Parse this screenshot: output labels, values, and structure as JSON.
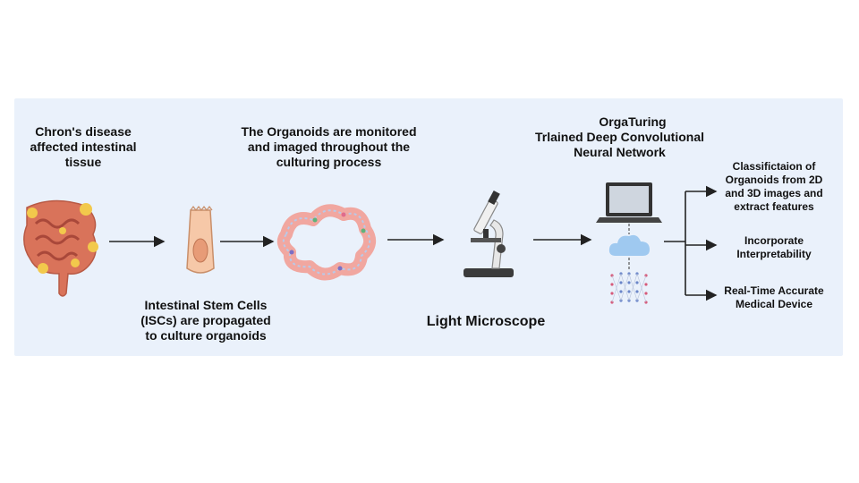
{
  "labels": {
    "tissue": "Chron's disease\naffected intestinal\ntissue",
    "stem_cells": "Intestinal Stem Cells\n(ISCs) are propagated\nto culture organoids",
    "organoids": "The Organoids are monitored\nand imaged throughout the\nculturing process",
    "microscope": "Light Microscope",
    "orgaturing_title": "OrgaTuring",
    "orgaturing_subtitle": "Trlained Deep Convolutional\nNeural Network",
    "output_classification": "Classifictaion of\nOrganoids from 2D\nand 3D images and\nextract features",
    "output_interpretability": "Incorporate\nInterpretability",
    "output_device": "Real-Time Accurate\nMedical Device"
  },
  "icons": {
    "intestine": "intestine-icon",
    "stem_cell": "stem-cell-icon",
    "organoid": "organoid-icon",
    "microscope": "microscope-icon",
    "laptop": "laptop-icon",
    "cloud": "cloud-icon",
    "network": "neural-network-icon"
  },
  "colors": {
    "panel_bg": "#eaf1fb",
    "arrow": "#222222",
    "intestine_main": "#d9735a",
    "intestine_inflamed": "#f2c94c",
    "cell_fill": "#f6c8a8",
    "cloud": "#9fc9f0"
  }
}
